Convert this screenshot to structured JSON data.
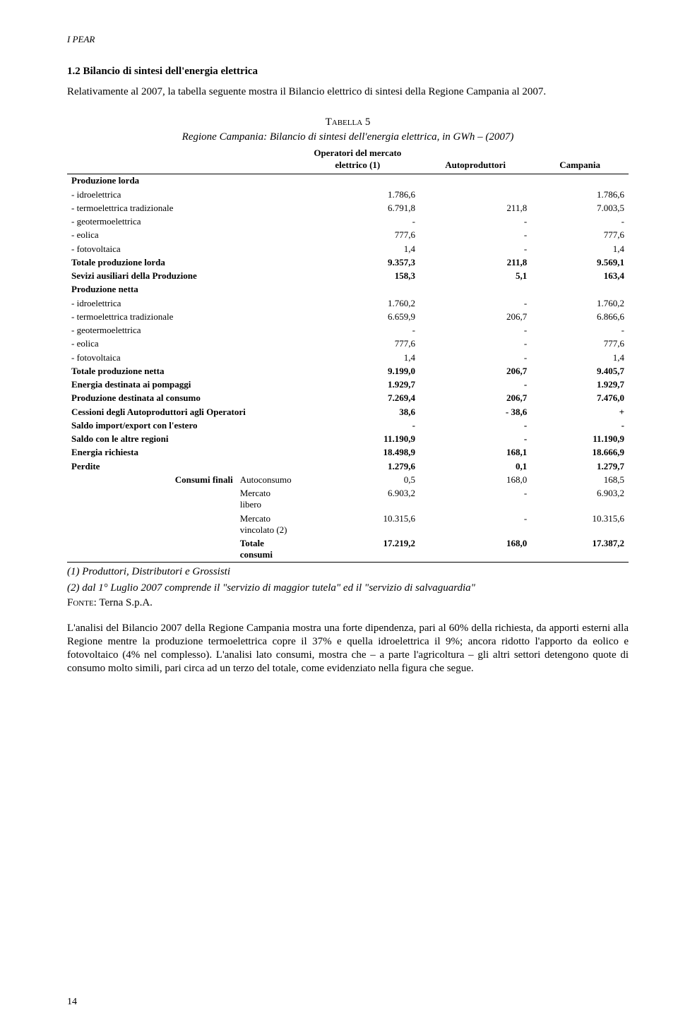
{
  "header": "I PEAR",
  "section_title": "1.2 Bilancio di sintesi dell'energia elettrica",
  "intro": "Relativamente al 2007, la    tabella seguente mostra il Bilancio elettrico di sintesi della Regione Campania al 2007.",
  "table": {
    "tab_label": "Tabella 5",
    "subtitle": "Regione Campania: Bilancio di sintesi dell'energia elettrica, in GWh – (2007)",
    "columns": [
      "",
      "Operatori del mercato elettrico (1)",
      "Autoproduttori",
      "Campania"
    ],
    "rows": [
      {
        "style": "section-row",
        "cells": [
          "Produzione lorda",
          "",
          "",
          ""
        ]
      },
      {
        "cells": [
          "- idroelettrica",
          "1.786,6",
          "",
          "1.786,6"
        ]
      },
      {
        "cells": [
          "- termoelettrica tradizionale",
          "6.791,8",
          "211,8",
          "7.003,5"
        ]
      },
      {
        "cells": [
          "- geotermoelettrica",
          "-",
          "-",
          "-"
        ]
      },
      {
        "cells": [
          "- eolica",
          "777,6",
          "-",
          "777,6"
        ]
      },
      {
        "cells": [
          "- fotovoltaica",
          "1,4",
          "-",
          "1,4"
        ]
      },
      {
        "style": "bold",
        "cells": [
          "Totale produzione lorda",
          "9.357,3",
          "211,8",
          "9.569,1"
        ]
      },
      {
        "style": "bold",
        "cells": [
          "Sevizi ausiliari della Produzione",
          "158,3",
          "5,1",
          "163,4"
        ]
      },
      {
        "style": "section-row",
        "cells": [
          "Produzione netta",
          "",
          "",
          ""
        ]
      },
      {
        "cells": [
          "- idroelettrica",
          "1.760,2",
          "-",
          "1.760,2"
        ]
      },
      {
        "cells": [
          "- termoelettrica tradizionale",
          "6.659,9",
          "206,7",
          "6.866,6"
        ]
      },
      {
        "cells": [
          "- geotermoelettrica",
          "-",
          "-",
          "-"
        ]
      },
      {
        "cells": [
          "- eolica",
          "777,6",
          "-",
          "777,6"
        ]
      },
      {
        "cells": [
          "- fotovoltaica",
          "1,4",
          "-",
          "1,4"
        ]
      },
      {
        "style": "bold",
        "cells": [
          "Totale produzione netta",
          "9.199,0",
          "206,7",
          "9.405,7"
        ]
      },
      {
        "style": "bold",
        "cells": [
          "Energia destinata ai pompaggi",
          "1.929,7",
          "-",
          "1.929,7"
        ]
      },
      {
        "style": "bold",
        "cells": [
          "Produzione destinata al consumo",
          "7.269,4",
          "206,7",
          "7.476,0"
        ]
      },
      {
        "style": "bold",
        "cells": [
          "Cessioni degli Autoproduttori agli Operatori",
          "38,6",
          "- 38,6",
          "+"
        ]
      },
      {
        "style": "bold",
        "cells": [
          "Saldo import/export con l'estero",
          "-",
          "-",
          "-"
        ]
      },
      {
        "style": "bold",
        "cells": [
          "Saldo con le altre regioni",
          "11.190,9",
          "-",
          "11.190,9"
        ]
      },
      {
        "style": "bold",
        "cells": [
          "Energia richiesta",
          "18.498,9",
          "168,1",
          "18.666,9"
        ]
      },
      {
        "style": "bold",
        "cells": [
          "Perdite",
          "1.279,6",
          "0,1",
          "1.279,7"
        ]
      },
      {
        "style": "indent",
        "cells_split": [
          "Consumi finali",
          "Autoconsumo",
          "0,5",
          "168,0",
          "168,5"
        ]
      },
      {
        "style": "indent",
        "cells_split": [
          "",
          "Mercato libero",
          "6.903,2",
          "-",
          "6.903,2"
        ]
      },
      {
        "style": "indent",
        "cells_split": [
          "",
          "Mercato vincolato (2)",
          "10.315,6",
          "-",
          "10.315,6"
        ]
      },
      {
        "style": "indent bold last-data",
        "cells_split": [
          "",
          "Totale consumi",
          "17.219,2",
          "168,0",
          "17.387,2"
        ]
      }
    ]
  },
  "note1": "(1) Produttori, Distributori e Grossisti",
  "note2": "(2) dal 1° Luglio 2007 comprende il \"servizio di maggior tutela\" ed il \"servizio di salvaguardia\"",
  "fonte_label": "Fonte",
  "fonte_val": "Terna S.p.A.",
  "analysis": "L'analisi del Bilancio 2007 della Regione Campania mostra una forte dipendenza, pari al 60% della richiesta, da apporti esterni alla Regione mentre la produzione termoelettrica copre il 37% e quella idroelettrica il 9%; ancora ridotto l'apporto da eolico e fotovoltaico (4% nel complesso). L'analisi lato consumi, mostra che – a parte l'agricoltura – gli altri settori detengono quote di consumo molto simili, pari circa ad un terzo del totale, come evidenziato nella figura che segue.",
  "page_number": "14"
}
